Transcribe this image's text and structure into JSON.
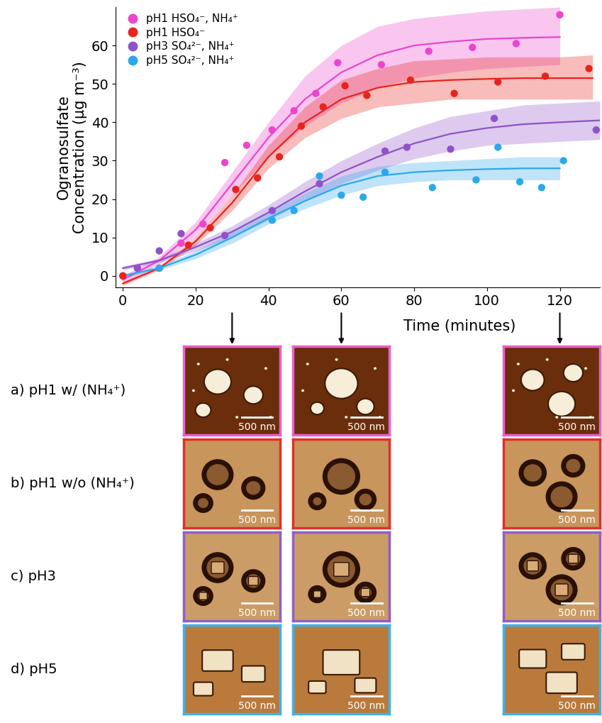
{
  "chart_data": {
    "type": "scatter",
    "y_label": "Ogranosulfate\nConcentration (µg m⁻³)",
    "x_label": "Time (minutes)",
    "xlim": [
      -2,
      131
    ],
    "xticks": [
      0,
      20,
      40,
      60,
      80,
      100,
      120
    ],
    "ylim": [
      -3,
      70
    ],
    "yticks": [
      0,
      10,
      20,
      30,
      40,
      50,
      60
    ],
    "legend": "upper left",
    "series": [
      {
        "name": "pH1 HSO₄⁻, NH₄⁺",
        "color": "#ea45cc",
        "marker": "circle",
        "x": [
          0,
          4,
          16,
          22,
          28,
          34,
          41,
          47,
          53,
          59,
          71,
          84,
          96,
          108,
          120
        ],
        "values": [
          0,
          2,
          8.5,
          13.5,
          29.5,
          34,
          38,
          43,
          47.5,
          55.5,
          55,
          58.5,
          59.5,
          60.5,
          68
        ],
        "fit_x": [
          0,
          10,
          20,
          30,
          40,
          50,
          60,
          70,
          80,
          90,
          100,
          110,
          120
        ],
        "fit_values": [
          -1,
          4,
          12,
          24,
          36,
          46,
          53,
          57.5,
          60,
          61,
          61.7,
          62,
          62.2
        ],
        "fit_lower": [
          -2,
          3,
          10,
          21,
          31,
          39,
          45,
          49,
          51.5,
          53,
          54,
          54.5,
          55
        ],
        "fit_upper": [
          0,
          5,
          14,
          27,
          40,
          52,
          60,
          65,
          67,
          68,
          69,
          69.5,
          70
        ]
      },
      {
        "name": "pH1 HSO₄⁻",
        "color": "#e8231d",
        "marker": "circle",
        "x": [
          0,
          10,
          18,
          24,
          31,
          37,
          43,
          49,
          55,
          61,
          67,
          79,
          91,
          103,
          116,
          128
        ],
        "values": [
          0,
          2,
          8,
          12.5,
          22.5,
          25.5,
          31,
          39,
          44,
          49.5,
          47,
          51,
          47.5,
          50.5,
          52,
          54
        ],
        "fit_x": [
          0,
          10,
          20,
          30,
          40,
          50,
          60,
          70,
          80,
          90,
          100,
          110,
          120,
          129
        ],
        "fit_values": [
          -2,
          2,
          9,
          19,
          31,
          40,
          46,
          49,
          50.5,
          51,
          51.3,
          51.5,
          51.5,
          51.5
        ],
        "fit_lower": [
          -2.5,
          1.5,
          8,
          17,
          28,
          36,
          41,
          44,
          45,
          46,
          46,
          46,
          46,
          46
        ],
        "fit_upper": [
          -1.5,
          2.5,
          10,
          21,
          34,
          44,
          51,
          54,
          56,
          56.5,
          57,
          57,
          57,
          57.5
        ]
      },
      {
        "name": "pH3 SO₄²⁻, NH₄⁺",
        "color": "#8f52c8",
        "marker": "circle",
        "x": [
          4,
          10,
          16,
          28,
          41,
          54,
          72,
          78,
          90,
          102,
          130
        ],
        "values": [
          2,
          6.5,
          11,
          10.5,
          17,
          24,
          32.5,
          33.5,
          33,
          41,
          38
        ],
        "fit_x": [
          0,
          10,
          20,
          30,
          40,
          50,
          60,
          70,
          80,
          90,
          100,
          110,
          120,
          131
        ],
        "fit_values": [
          2,
          4,
          7.5,
          11.5,
          16.5,
          22,
          27,
          31,
          34.5,
          37,
          38.5,
          39.5,
          40,
          40.5
        ],
        "fit_lower": [
          1.5,
          3.5,
          6.5,
          10,
          14.5,
          19.5,
          24,
          27.5,
          30.5,
          32.5,
          34,
          34.5,
          35,
          35.5
        ],
        "fit_upper": [
          2.5,
          4.5,
          8.5,
          13,
          18.5,
          24.5,
          30,
          34.5,
          38.5,
          41.5,
          43,
          44.5,
          45,
          45.5
        ]
      },
      {
        "name": "pH5 SO₄²⁻, NH₄⁺",
        "color": "#2ca8ec",
        "marker": "circle",
        "x": [
          10,
          41,
          47,
          54,
          60,
          66,
          72,
          85,
          97,
          103,
          109,
          115,
          121
        ],
        "values": [
          2,
          14.5,
          17,
          26,
          21,
          20.5,
          27,
          23,
          25,
          33.5,
          24.5,
          23,
          30
        ],
        "fit_x": [
          0,
          10,
          20,
          30,
          40,
          50,
          60,
          70,
          80,
          90,
          100,
          110,
          120
        ],
        "fit_values": [
          0,
          2,
          5.5,
          10,
          15,
          19.5,
          23.5,
          26,
          27,
          27.5,
          27.8,
          28,
          28
        ],
        "fit_lower": [
          -0.5,
          1.5,
          4.5,
          8.5,
          13.5,
          17.5,
          21,
          23.5,
          24.5,
          25,
          25,
          25,
          25
        ],
        "fit_upper": [
          0.5,
          2.5,
          6.5,
          11.5,
          16.5,
          21.5,
          26,
          28.5,
          29.5,
          30,
          30.5,
          31,
          31
        ]
      }
    ]
  },
  "afm_images": {
    "times": [
      30,
      60,
      120
    ],
    "rows": [
      {
        "label": "a) pH1 w/ (NH₄⁺)",
        "color": "#ea5fc8",
        "scale_labels": [
          "500 nm",
          "500 nm",
          "500 nm"
        ]
      },
      {
        "label": "b) pH1 w/o (NH₄⁺)",
        "color": "#e0302a",
        "scale_labels": [
          "500 nm",
          "500 nm",
          "500 nm"
        ]
      },
      {
        "label": "c) pH3",
        "color": "#8f5fc6",
        "scale_labels": [
          "500 nm",
          "500 nm",
          "500 nm"
        ]
      },
      {
        "label": "d) pH5",
        "color": "#3fb2ea",
        "scale_labels": [
          "500 nm",
          "500 nm",
          "500 nm"
        ]
      }
    ]
  }
}
